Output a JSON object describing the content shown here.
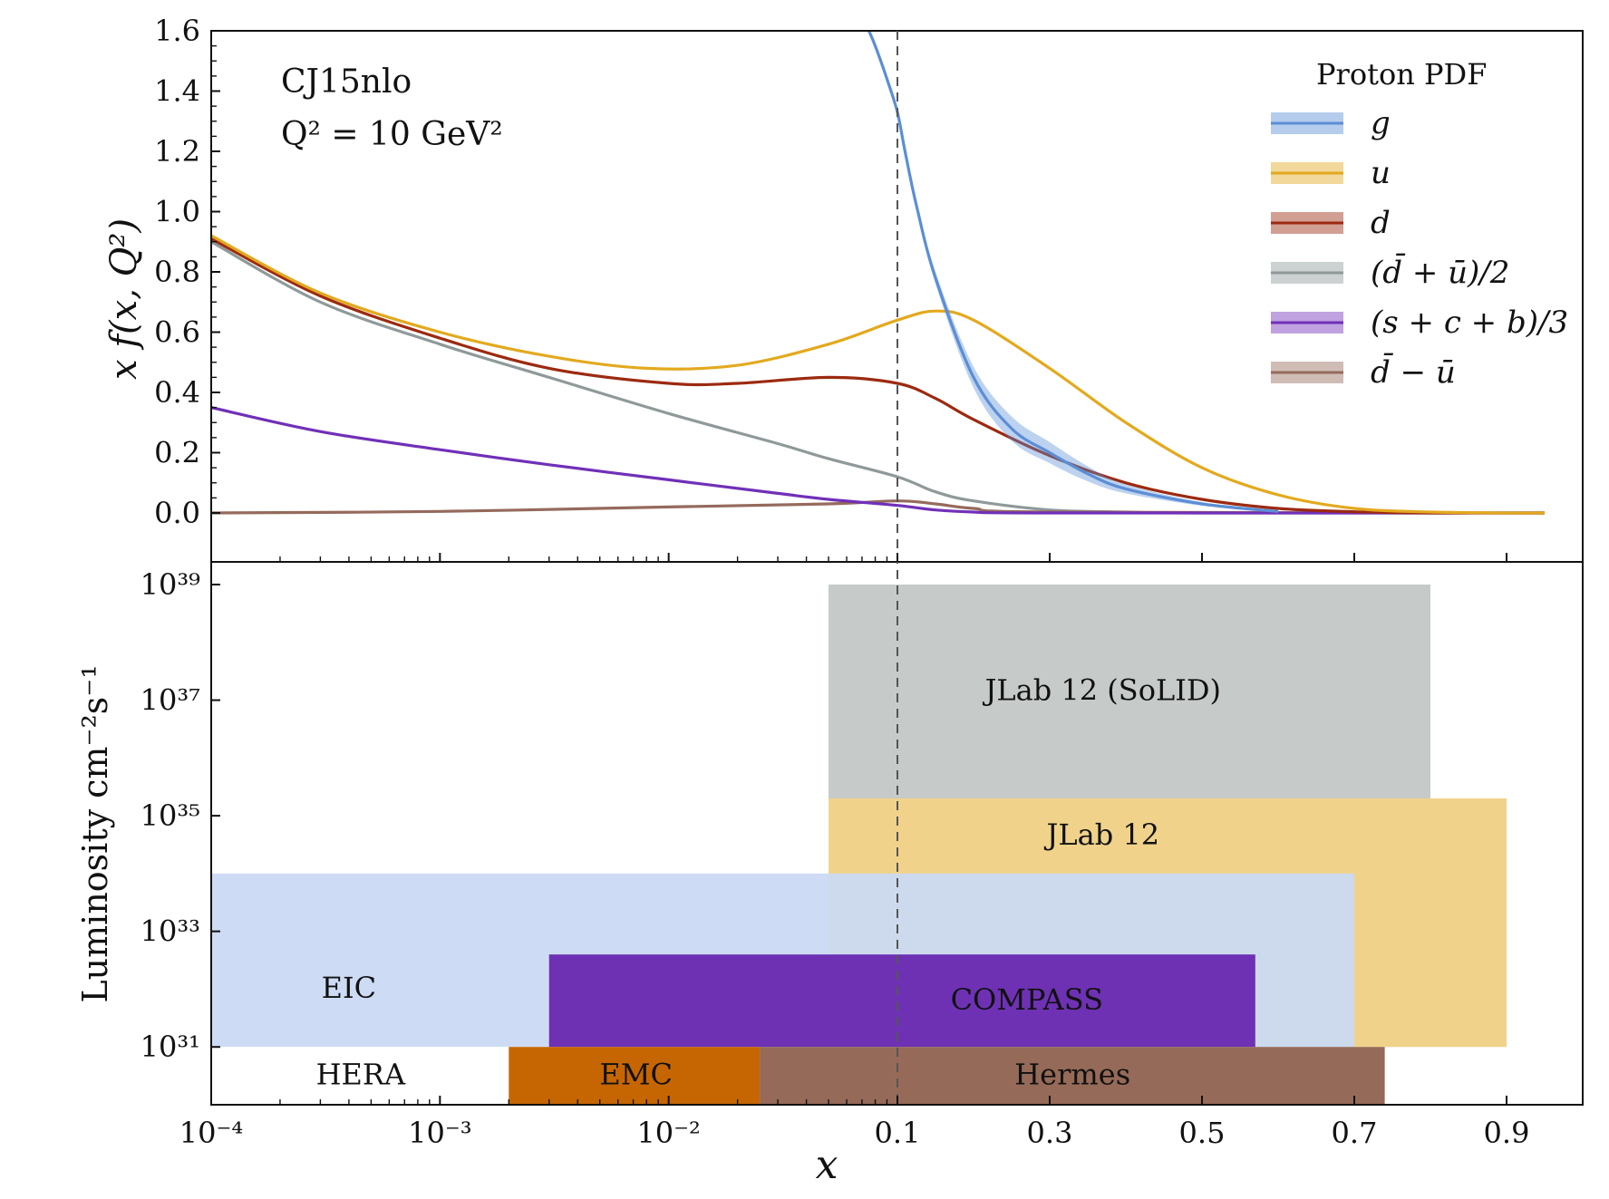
{
  "chart_data": [
    {
      "type": "line",
      "panel": "top",
      "annotation": {
        "line1": "CJ15nlo",
        "line2": "Q² = 10 GeV²"
      },
      "ylabel": "x f(x, Q²)",
      "ylim": [
        0,
        1.6
      ],
      "yticks": [
        "0.0",
        "0.2",
        "0.4",
        "0.6",
        "0.8",
        "1.0",
        "1.2",
        "1.4",
        "1.6"
      ],
      "legend": {
        "title": "Proton PDF",
        "placement": "top-right"
      },
      "colors": {
        "g": "#5b8ed6",
        "u": "#e3a91e",
        "d": "#9c2a10",
        "sea": "#8f9999",
        "scb": "#7030b8",
        "dbu": "#956a5c"
      },
      "series": [
        {
          "name": "g",
          "key": "g",
          "band": true,
          "x": [
            0.075,
            0.08,
            0.09,
            0.1,
            0.11,
            0.125,
            0.15,
            0.2,
            0.25,
            0.3,
            0.35,
            0.4,
            0.5,
            0.6
          ],
          "y": [
            1.6,
            1.55,
            1.44,
            1.33,
            1.2,
            1.02,
            0.78,
            0.45,
            0.28,
            0.2,
            0.13,
            0.08,
            0.03,
            0.005
          ],
          "band_halfwidth": [
            0.01,
            0.01,
            0.01,
            0.01,
            0.012,
            0.015,
            0.02,
            0.035,
            0.04,
            0.035,
            0.025,
            0.015,
            0.006,
            0.002
          ]
        },
        {
          "name": "u",
          "key": "u",
          "x": [
            0.0001,
            0.0003,
            0.001,
            0.003,
            0.008,
            0.02,
            0.05,
            0.1,
            0.15,
            0.2,
            0.3,
            0.4,
            0.5,
            0.6,
            0.7,
            0.8,
            0.9,
            0.95
          ],
          "y": [
            0.92,
            0.73,
            0.6,
            0.52,
            0.48,
            0.49,
            0.56,
            0.64,
            0.67,
            0.64,
            0.48,
            0.3,
            0.15,
            0.06,
            0.015,
            0.003,
            0.0,
            0.0
          ]
        },
        {
          "name": "d",
          "key": "d",
          "x": [
            0.0001,
            0.0003,
            0.001,
            0.003,
            0.01,
            0.02,
            0.05,
            0.1,
            0.15,
            0.2,
            0.3,
            0.4,
            0.5,
            0.6,
            0.7,
            0.8,
            0.95
          ],
          "y": [
            0.91,
            0.72,
            0.58,
            0.48,
            0.43,
            0.43,
            0.45,
            0.43,
            0.38,
            0.31,
            0.19,
            0.1,
            0.045,
            0.015,
            0.004,
            0.0,
            0.0
          ]
        },
        {
          "name": "(d̄ + ū)/2",
          "key": "sea",
          "x": [
            0.0001,
            0.0003,
            0.001,
            0.003,
            0.01,
            0.03,
            0.05,
            0.1,
            0.15,
            0.2,
            0.3,
            0.4,
            0.5,
            0.95
          ],
          "y": [
            0.9,
            0.7,
            0.56,
            0.45,
            0.33,
            0.23,
            0.18,
            0.12,
            0.07,
            0.04,
            0.01,
            0.003,
            0.0,
            0.0
          ]
        },
        {
          "name": "(s + c + b)/3",
          "key": "scb",
          "x": [
            0.0001,
            0.0003,
            0.001,
            0.003,
            0.01,
            0.03,
            0.05,
            0.1,
            0.15,
            0.2,
            0.3,
            0.95
          ],
          "y": [
            0.35,
            0.27,
            0.21,
            0.16,
            0.11,
            0.065,
            0.045,
            0.025,
            0.01,
            0.003,
            0.0,
            0.0
          ]
        },
        {
          "name": "d̄ − ū",
          "key": "dbu",
          "x": [
            0.0001,
            0.001,
            0.01,
            0.05,
            0.1,
            0.15,
            0.2,
            0.3,
            0.95
          ],
          "y": [
            0.0,
            0.005,
            0.02,
            0.03,
            0.04,
            0.03,
            0.015,
            0.003,
            0.0
          ]
        }
      ]
    },
    {
      "type": "bar",
      "panel": "bottom",
      "ylabel": "Luminosity cm⁻²s⁻¹",
      "xlabel": "x",
      "xticks": [
        "10⁻⁴",
        "10⁻³",
        "10⁻²",
        "0.1",
        "0.3",
        "0.5",
        "0.7",
        "0.9"
      ],
      "yticks": [
        "10³¹",
        "10³³",
        "10³⁵",
        "10³⁷",
        "10³⁹"
      ],
      "ylim_log10": [
        30,
        39
      ],
      "x_axis": "log scale from 10⁻⁴ to 0.1, linear from 0.1 to 1",
      "vertical_reference": {
        "x": 0.1,
        "style": "dashed"
      },
      "regions": [
        {
          "label": "JLab 12 (SoLID)",
          "xmin": 0.05,
          "xmax": 0.8,
          "log_lum_min": 35.3,
          "log_lum_max": 39.0,
          "color": "#c6cac8"
        },
        {
          "label": "JLab 12",
          "xmin": 0.05,
          "xmax": 0.9,
          "log_lum_min": 31.0,
          "log_lum_max": 35.3,
          "color": "#f0d28a"
        },
        {
          "label": "EIC",
          "xmin": 0.0001,
          "xmax": 0.7,
          "log_lum_min": 31.0,
          "log_lum_max": 34.0,
          "color": "#cadaf3"
        },
        {
          "label": "COMPASS",
          "xmin": 0.003,
          "xmax": 0.57,
          "log_lum_min": 31.0,
          "log_lum_max": 32.6,
          "color": "#6e31b4"
        },
        {
          "label": "HERA",
          "xmin": 0.0001,
          "xmax": 0.002,
          "log_lum_min": 30.0,
          "log_lum_max": 31.0,
          "color": "#ffffff"
        },
        {
          "label": "EMC",
          "xmin": 0.002,
          "xmax": 0.025,
          "log_lum_min": 30.0,
          "log_lum_max": 31.0,
          "color": "#c66602"
        },
        {
          "label": "Hermes",
          "xmin": 0.025,
          "xmax": 0.74,
          "log_lum_min": 30.0,
          "log_lum_max": 31.0,
          "color": "#966a58"
        }
      ]
    }
  ]
}
